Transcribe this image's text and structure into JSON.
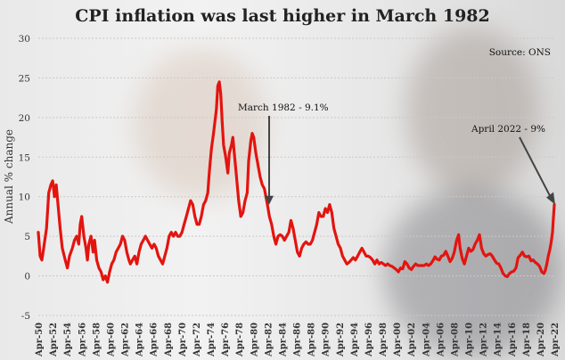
{
  "chart_data": {
    "type": "line",
    "title": "CPI inflation was last higher in March 1982",
    "source": "Source: ONS",
    "xlabel": "",
    "ylabel": "Annual % change",
    "ylim": [
      -5,
      30
    ],
    "xlim": [
      1950.25,
      2022.25
    ],
    "yticks": [
      "-5",
      "0",
      "5",
      "10",
      "15",
      "20",
      "25",
      "30"
    ],
    "xticks": [
      "Apr-50",
      "Apr-52",
      "Apr-54",
      "Apr-56",
      "Apr-58",
      "Apr-60",
      "Apr-62",
      "Apr-64",
      "Apr-66",
      "Apr-68",
      "Apr-70",
      "Apr-72",
      "Apr-74",
      "Apr-76",
      "Apr-78",
      "Apr-80",
      "Apr-82",
      "Apr-84",
      "Apr-86",
      "Apr-88",
      "Apr-90",
      "Apr-92",
      "Apr-94",
      "Apr-96",
      "Apr-98",
      "Apr-00",
      "Apr-02",
      "Apr-04",
      "Apr-06",
      "Apr-08",
      "Apr-10",
      "Apr-12",
      "Apr-14",
      "Apr-16",
      "Apr-18",
      "Apr-20",
      "Apr-22"
    ],
    "grid": true,
    "line_color": "#e3140f",
    "annotations": [
      {
        "text": "March 1982 - 9.1%",
        "x": 1982.2,
        "y": 9.1
      },
      {
        "text": "April 2022 - 9%",
        "x": 2022.25,
        "y": 9
      }
    ],
    "series": [
      {
        "points": [
          [
            1950.25,
            5.5
          ],
          [
            1950.5,
            2.5
          ],
          [
            1950.75,
            2.0
          ],
          [
            1951.0,
            3.5
          ],
          [
            1951.4,
            6.0
          ],
          [
            1951.7,
            10.5
          ],
          [
            1952.0,
            11.5
          ],
          [
            1952.25,
            12.0
          ],
          [
            1952.5,
            10.0
          ],
          [
            1952.75,
            11.5
          ],
          [
            1953.0,
            9.0
          ],
          [
            1953.3,
            6.0
          ],
          [
            1953.6,
            3.5
          ],
          [
            1954.0,
            2.0
          ],
          [
            1954.3,
            1.0
          ],
          [
            1954.6,
            2.5
          ],
          [
            1955.0,
            3.5
          ],
          [
            1955.3,
            4.5
          ],
          [
            1955.6,
            5.0
          ],
          [
            1955.9,
            4.0
          ],
          [
            1956.1,
            6.5
          ],
          [
            1956.3,
            7.5
          ],
          [
            1956.6,
            5.0
          ],
          [
            1956.9,
            3.5
          ],
          [
            1957.1,
            2.0
          ],
          [
            1957.3,
            4.0
          ],
          [
            1957.6,
            5.0
          ],
          [
            1957.9,
            3.0
          ],
          [
            1958.1,
            4.5
          ],
          [
            1958.4,
            2.0
          ],
          [
            1958.7,
            1.0
          ],
          [
            1959.0,
            0.5
          ],
          [
            1959.3,
            -0.5
          ],
          [
            1959.6,
            0.0
          ],
          [
            1959.9,
            -0.8
          ],
          [
            1960.2,
            0.5
          ],
          [
            1960.5,
            1.5
          ],
          [
            1960.8,
            2.0
          ],
          [
            1961.1,
            3.0
          ],
          [
            1961.4,
            3.5
          ],
          [
            1961.7,
            4.0
          ],
          [
            1962.0,
            5.0
          ],
          [
            1962.3,
            4.5
          ],
          [
            1962.6,
            3.0
          ],
          [
            1962.9,
            2.0
          ],
          [
            1963.1,
            1.5
          ],
          [
            1963.4,
            2.0
          ],
          [
            1963.7,
            2.5
          ],
          [
            1964.0,
            1.5
          ],
          [
            1964.3,
            3.0
          ],
          [
            1964.6,
            4.0
          ],
          [
            1964.9,
            4.5
          ],
          [
            1965.2,
            5.0
          ],
          [
            1965.5,
            4.5
          ],
          [
            1965.8,
            4.0
          ],
          [
            1966.1,
            3.5
          ],
          [
            1966.4,
            4.0
          ],
          [
            1966.7,
            3.5
          ],
          [
            1967.0,
            2.5
          ],
          [
            1967.3,
            2.0
          ],
          [
            1967.6,
            1.5
          ],
          [
            1967.9,
            2.5
          ],
          [
            1968.2,
            3.5
          ],
          [
            1968.5,
            5.0
          ],
          [
            1968.8,
            5.5
          ],
          [
            1969.1,
            5.0
          ],
          [
            1969.4,
            5.5
          ],
          [
            1969.7,
            5.0
          ],
          [
            1970.0,
            5.0
          ],
          [
            1970.3,
            5.5
          ],
          [
            1970.6,
            6.5
          ],
          [
            1970.9,
            7.5
          ],
          [
            1971.2,
            8.5
          ],
          [
            1971.5,
            9.5
          ],
          [
            1971.8,
            9.0
          ],
          [
            1972.1,
            7.5
          ],
          [
            1972.4,
            6.5
          ],
          [
            1972.7,
            6.5
          ],
          [
            1973.0,
            7.5
          ],
          [
            1973.3,
            9.0
          ],
          [
            1973.6,
            9.5
          ],
          [
            1973.9,
            10.5
          ],
          [
            1974.1,
            13.0
          ],
          [
            1974.4,
            16.0
          ],
          [
            1974.7,
            18.0
          ],
          [
            1974.9,
            19.5
          ],
          [
            1975.1,
            21.0
          ],
          [
            1975.3,
            24.0
          ],
          [
            1975.5,
            24.5
          ],
          [
            1975.7,
            23.0
          ],
          [
            1975.9,
            19.5
          ],
          [
            1976.1,
            16.5
          ],
          [
            1976.4,
            15.0
          ],
          [
            1976.7,
            13.0
          ],
          [
            1976.9,
            15.5
          ],
          [
            1977.2,
            16.5
          ],
          [
            1977.4,
            17.5
          ],
          [
            1977.6,
            15.5
          ],
          [
            1977.9,
            12.5
          ],
          [
            1978.2,
            9.5
          ],
          [
            1978.5,
            7.5
          ],
          [
            1978.8,
            8.0
          ],
          [
            1979.1,
            9.5
          ],
          [
            1979.4,
            10.5
          ],
          [
            1979.6,
            14.5
          ],
          [
            1979.9,
            17.0
          ],
          [
            1980.1,
            18.0
          ],
          [
            1980.3,
            17.5
          ],
          [
            1980.6,
            15.5
          ],
          [
            1980.9,
            14.0
          ],
          [
            1981.2,
            12.5
          ],
          [
            1981.5,
            11.5
          ],
          [
            1981.8,
            11.0
          ],
          [
            1982.2,
            9.1
          ],
          [
            1982.5,
            7.5
          ],
          [
            1982.8,
            6.5
          ],
          [
            1983.1,
            5.0
          ],
          [
            1983.4,
            4.0
          ],
          [
            1983.7,
            5.0
          ],
          [
            1984.0,
            5.2
          ],
          [
            1984.3,
            5.0
          ],
          [
            1984.6,
            4.5
          ],
          [
            1984.9,
            5.0
          ],
          [
            1985.2,
            5.5
          ],
          [
            1985.5,
            7.0
          ],
          [
            1985.8,
            6.0
          ],
          [
            1986.1,
            4.5
          ],
          [
            1986.4,
            3.0
          ],
          [
            1986.7,
            2.5
          ],
          [
            1987.0,
            3.5
          ],
          [
            1987.3,
            4.0
          ],
          [
            1987.6,
            4.3
          ],
          [
            1987.9,
            4.0
          ],
          [
            1988.2,
            4.0
          ],
          [
            1988.5,
            4.5
          ],
          [
            1988.8,
            5.5
          ],
          [
            1989.1,
            6.5
          ],
          [
            1989.4,
            8.0
          ],
          [
            1989.7,
            7.5
          ],
          [
            1990.0,
            7.5
          ],
          [
            1990.3,
            8.5
          ],
          [
            1990.6,
            8.0
          ],
          [
            1990.9,
            9.0
          ],
          [
            1991.2,
            8.0
          ],
          [
            1991.5,
            6.0
          ],
          [
            1991.8,
            5.0
          ],
          [
            1992.1,
            4.0
          ],
          [
            1992.4,
            3.5
          ],
          [
            1992.7,
            2.5
          ],
          [
            1993.0,
            2.0
          ],
          [
            1993.3,
            1.5
          ],
          [
            1993.6,
            1.7
          ],
          [
            1993.9,
            2.0
          ],
          [
            1994.2,
            2.3
          ],
          [
            1994.5,
            2.0
          ],
          [
            1994.8,
            2.5
          ],
          [
            1995.1,
            3.0
          ],
          [
            1995.4,
            3.5
          ],
          [
            1995.7,
            3.0
          ],
          [
            1996.0,
            2.5
          ],
          [
            1996.3,
            2.5
          ],
          [
            1996.6,
            2.3
          ],
          [
            1996.9,
            2.0
          ],
          [
            1997.2,
            1.5
          ],
          [
            1997.5,
            2.0
          ],
          [
            1997.8,
            1.5
          ],
          [
            1998.1,
            1.7
          ],
          [
            1998.4,
            1.5
          ],
          [
            1998.7,
            1.3
          ],
          [
            1999.0,
            1.5
          ],
          [
            1999.3,
            1.3
          ],
          [
            1999.6,
            1.2
          ],
          [
            1999.9,
            1.0
          ],
          [
            2000.2,
            0.8
          ],
          [
            2000.5,
            0.5
          ],
          [
            2000.8,
            1.0
          ],
          [
            2001.1,
            0.9
          ],
          [
            2001.4,
            1.8
          ],
          [
            2001.7,
            1.5
          ],
          [
            2002.0,
            1.0
          ],
          [
            2002.3,
            0.8
          ],
          [
            2002.6,
            1.2
          ],
          [
            2002.9,
            1.5
          ],
          [
            2003.2,
            1.3
          ],
          [
            2003.5,
            1.3
          ],
          [
            2003.8,
            1.3
          ],
          [
            2004.1,
            1.3
          ],
          [
            2004.4,
            1.5
          ],
          [
            2004.7,
            1.3
          ],
          [
            2005.0,
            1.5
          ],
          [
            2005.3,
            1.9
          ],
          [
            2005.6,
            2.4
          ],
          [
            2005.9,
            2.1
          ],
          [
            2006.2,
            2.0
          ],
          [
            2006.5,
            2.5
          ],
          [
            2006.8,
            2.6
          ],
          [
            2007.1,
            3.1
          ],
          [
            2007.4,
            2.5
          ],
          [
            2007.7,
            1.8
          ],
          [
            2008.0,
            2.2
          ],
          [
            2008.3,
            3.0
          ],
          [
            2008.6,
            4.4
          ],
          [
            2008.9,
            5.2
          ],
          [
            2009.1,
            3.5
          ],
          [
            2009.4,
            2.2
          ],
          [
            2009.7,
            1.5
          ],
          [
            2010.0,
            2.5
          ],
          [
            2010.3,
            3.5
          ],
          [
            2010.6,
            3.1
          ],
          [
            2010.9,
            3.3
          ],
          [
            2011.2,
            4.0
          ],
          [
            2011.5,
            4.5
          ],
          [
            2011.8,
            5.2
          ],
          [
            2012.1,
            3.5
          ],
          [
            2012.4,
            2.8
          ],
          [
            2012.7,
            2.5
          ],
          [
            2013.0,
            2.7
          ],
          [
            2013.3,
            2.8
          ],
          [
            2013.6,
            2.5
          ],
          [
            2013.9,
            2.0
          ],
          [
            2014.2,
            1.6
          ],
          [
            2014.5,
            1.5
          ],
          [
            2014.8,
            1.0
          ],
          [
            2015.1,
            0.3
          ],
          [
            2015.4,
            0.0
          ],
          [
            2015.7,
            -0.1
          ],
          [
            2016.0,
            0.3
          ],
          [
            2016.3,
            0.5
          ],
          [
            2016.6,
            0.6
          ],
          [
            2016.9,
            1.0
          ],
          [
            2017.2,
            2.3
          ],
          [
            2017.5,
            2.6
          ],
          [
            2017.8,
            3.0
          ],
          [
            2018.1,
            2.5
          ],
          [
            2018.4,
            2.4
          ],
          [
            2018.7,
            2.5
          ],
          [
            2019.0,
            1.9
          ],
          [
            2019.3,
            2.0
          ],
          [
            2019.6,
            1.7
          ],
          [
            2019.9,
            1.5
          ],
          [
            2020.2,
            1.2
          ],
          [
            2020.5,
            0.5
          ],
          [
            2020.8,
            0.3
          ],
          [
            2021.0,
            0.7
          ],
          [
            2021.2,
            1.5
          ],
          [
            2021.4,
            2.5
          ],
          [
            2021.6,
            3.2
          ],
          [
            2021.8,
            4.2
          ],
          [
            2022.0,
            5.5
          ],
          [
            2022.1,
            7.0
          ],
          [
            2022.25,
            9.0
          ]
        ]
      }
    ]
  }
}
